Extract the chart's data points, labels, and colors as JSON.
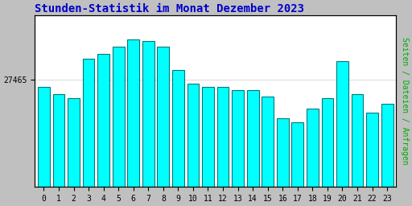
{
  "title": "Stunden-Statistik im Monat Dezember 2023",
  "title_color": "#0000cc",
  "title_fontsize": 10,
  "ylabel": "Seiten / Dateien / Anfragen",
  "ylabel_color": "#00aa00",
  "ylabel_fontsize": 7,
  "ytick_label": "27465",
  "categories": [
    0,
    1,
    2,
    3,
    4,
    5,
    6,
    7,
    8,
    9,
    10,
    11,
    12,
    13,
    14,
    15,
    16,
    17,
    18,
    19,
    20,
    21,
    22,
    23
  ],
  "values": [
    27460,
    27455,
    27452,
    27480,
    27483,
    27488,
    27493,
    27492,
    27488,
    27472,
    27462,
    27460,
    27460,
    27458,
    27458,
    27453,
    27438,
    27435,
    27445,
    27452,
    27478,
    27455,
    27442,
    27448
  ],
  "bar_color": "#00ffff",
  "bar_edge_color": "#007777",
  "bar_edge_width": 0.8,
  "background_color": "#c0c0c0",
  "plot_bg_color": "#ffffff",
  "ylim_min": 27390,
  "ylim_max": 27510,
  "bar_width": 0.8
}
